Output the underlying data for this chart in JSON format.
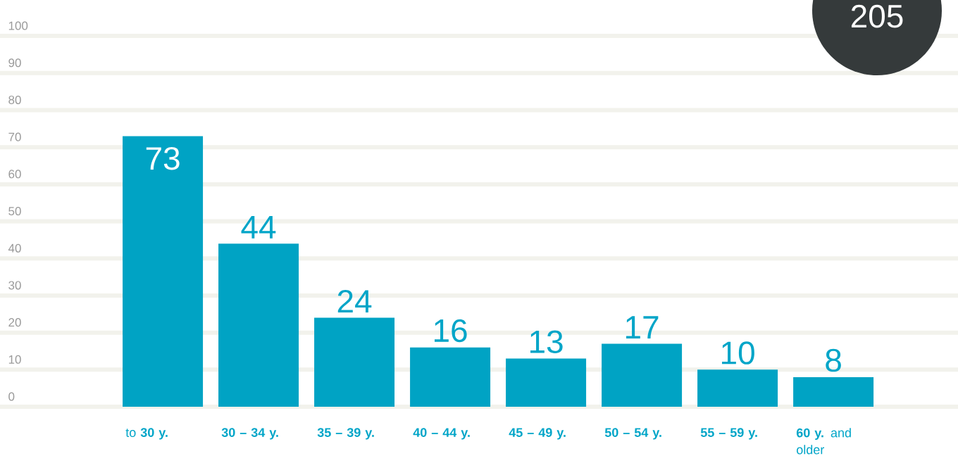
{
  "chart_data": {
    "type": "bar",
    "categories": [
      "to **30 y.**",
      "**30 – 34 y.**",
      "**35 – 39 y.**",
      "**40 – 44 y.**",
      "**45 – 49 y.**",
      "**50 – 54 y.**",
      "**55 – 59 y.**",
      "**60 y.** and older"
    ],
    "values": [
      73,
      44,
      24,
      16,
      13,
      17,
      10,
      8
    ],
    "color": "#00a3c4",
    "ylim": [
      0,
      100
    ],
    "yticks": [
      0,
      10,
      20,
      30,
      40,
      50,
      60,
      70,
      80,
      90,
      100
    ],
    "grid": "y",
    "data_labels": true,
    "annotations": [
      "205"
    ]
  }
}
